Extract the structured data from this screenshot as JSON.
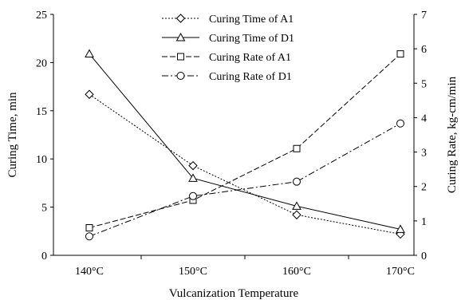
{
  "chart_data": {
    "type": "line",
    "xlabel": "Vulcanization Temperature",
    "ylabel_left": "Curing Time, min",
    "ylabel_right": "Curing Rate, kg-cm/min",
    "categories": [
      "140°C",
      "150°C",
      "160°C",
      "170°C"
    ],
    "ylim_left": [
      0,
      25
    ],
    "yticks_left": [
      "0",
      "5",
      "10",
      "15",
      "20",
      "25"
    ],
    "ylim_right": [
      0,
      7
    ],
    "yticks_right": [
      "0",
      "1",
      "2",
      "3",
      "4",
      "5",
      "6",
      "7"
    ],
    "grid": false,
    "legend_position": "top-center",
    "series": [
      {
        "name": "Curing Time of A1",
        "axis": "left",
        "marker": "diamond",
        "dash": "dotted",
        "values": [
          16.7,
          9.3,
          4.2,
          2.2
        ]
      },
      {
        "name": "Curing Time of D1",
        "axis": "left",
        "marker": "triangle",
        "dash": "solid",
        "values": [
          20.9,
          8.0,
          5.1,
          2.7
        ]
      },
      {
        "name": "Curing Rate of A1",
        "axis": "right",
        "marker": "square",
        "dash": "dashed",
        "values": [
          0.8,
          1.6,
          3.1,
          5.85
        ]
      },
      {
        "name": "Curing Rate of D1",
        "axis": "right",
        "marker": "circle",
        "dash": "dashdot",
        "values": [
          0.55,
          1.72,
          2.14,
          3.83
        ]
      }
    ]
  }
}
